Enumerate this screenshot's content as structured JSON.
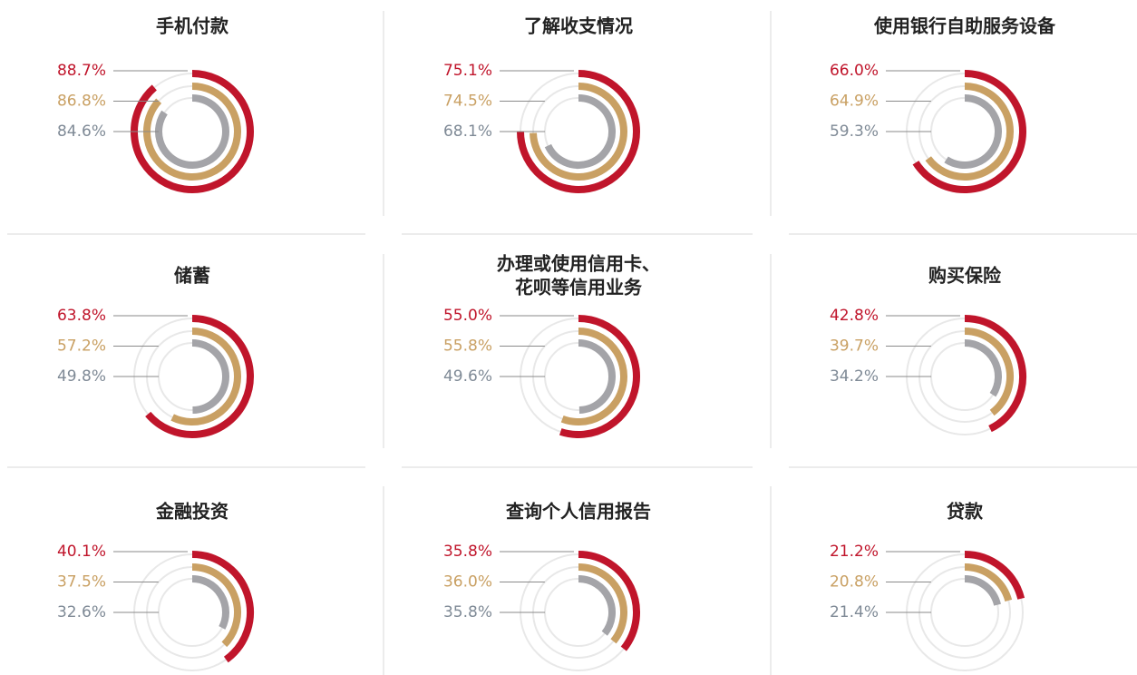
{
  "chart_data": [
    {
      "type": "radial_bar",
      "title": "手机付款",
      "ylim": [
        0,
        100
      ],
      "series": [
        {
          "color": "#c0152b",
          "values": [
            88.7
          ],
          "value_labels": [
            "88.7%"
          ]
        },
        {
          "color": "#c9a063",
          "values": [
            86.8
          ],
          "value_labels": [
            "86.8%"
          ]
        },
        {
          "color": "#a4a4a8",
          "values": [
            84.6
          ],
          "value_labels": [
            "84.6%"
          ]
        }
      ]
    },
    {
      "type": "radial_bar",
      "title": "了解收支情况",
      "ylim": [
        0,
        100
      ],
      "series": [
        {
          "color": "#c0152b",
          "values": [
            75.1
          ],
          "value_labels": [
            "75.1%"
          ]
        },
        {
          "color": "#c9a063",
          "values": [
            74.5
          ],
          "value_labels": [
            "74.5%"
          ]
        },
        {
          "color": "#a4a4a8",
          "values": [
            68.1
          ],
          "value_labels": [
            "68.1%"
          ]
        }
      ]
    },
    {
      "type": "radial_bar",
      "title": "使用银行自助服务设备",
      "ylim": [
        0,
        100
      ],
      "series": [
        {
          "color": "#c0152b",
          "values": [
            66.0
          ],
          "value_labels": [
            "66.0%"
          ]
        },
        {
          "color": "#c9a063",
          "values": [
            64.9
          ],
          "value_labels": [
            "64.9%"
          ]
        },
        {
          "color": "#a4a4a8",
          "values": [
            59.3
          ],
          "value_labels": [
            "59.3%"
          ]
        }
      ]
    },
    {
      "type": "radial_bar",
      "title": "储蓄",
      "ylim": [
        0,
        100
      ],
      "series": [
        {
          "color": "#c0152b",
          "values": [
            63.8
          ],
          "value_labels": [
            "63.8%"
          ]
        },
        {
          "color": "#c9a063",
          "values": [
            57.2
          ],
          "value_labels": [
            "57.2%"
          ]
        },
        {
          "color": "#a4a4a8",
          "values": [
            49.8
          ],
          "value_labels": [
            "49.8%"
          ]
        }
      ]
    },
    {
      "type": "radial_bar",
      "title": [
        "办理或使用信用卡、",
        "花呗等信用业务"
      ],
      "ylim": [
        0,
        100
      ],
      "series": [
        {
          "color": "#c0152b",
          "values": [
            55.0
          ],
          "value_labels": [
            "55.0%"
          ]
        },
        {
          "color": "#c9a063",
          "values": [
            55.8
          ],
          "value_labels": [
            "55.8%"
          ]
        },
        {
          "color": "#a4a4a8",
          "values": [
            49.6
          ],
          "value_labels": [
            "49.6%"
          ]
        }
      ]
    },
    {
      "type": "radial_bar",
      "title": "购买保险",
      "ylim": [
        0,
        100
      ],
      "series": [
        {
          "color": "#c0152b",
          "values": [
            42.8
          ],
          "value_labels": [
            "42.8%"
          ]
        },
        {
          "color": "#c9a063",
          "values": [
            39.7
          ],
          "value_labels": [
            "39.7%"
          ]
        },
        {
          "color": "#a4a4a8",
          "values": [
            34.2
          ],
          "value_labels": [
            "34.2%"
          ]
        }
      ]
    },
    {
      "type": "radial_bar",
      "title": "金融投资",
      "ylim": [
        0,
        100
      ],
      "series": [
        {
          "color": "#c0152b",
          "values": [
            40.1
          ],
          "value_labels": [
            "40.1%"
          ]
        },
        {
          "color": "#c9a063",
          "values": [
            37.5
          ],
          "value_labels": [
            "37.5%"
          ]
        },
        {
          "color": "#a4a4a8",
          "values": [
            32.6
          ],
          "value_labels": [
            "32.6%"
          ]
        }
      ]
    },
    {
      "type": "radial_bar",
      "title": "查询个人信用报告",
      "ylim": [
        0,
        100
      ],
      "series": [
        {
          "color": "#c0152b",
          "values": [
            35.8
          ],
          "value_labels": [
            "35.8%"
          ]
        },
        {
          "color": "#c9a063",
          "values": [
            36.0
          ],
          "value_labels": [
            "36.0%"
          ]
        },
        {
          "color": "#a4a4a8",
          "values": [
            35.8
          ],
          "value_labels": [
            "35.8%"
          ]
        }
      ]
    },
    {
      "type": "radial_bar",
      "title": "贷款",
      "ylim": [
        0,
        100
      ],
      "series": [
        {
          "color": "#c0152b",
          "values": [
            21.2
          ],
          "value_labels": [
            "21.2%"
          ]
        },
        {
          "color": "#c9a063",
          "values": [
            20.8
          ],
          "value_labels": [
            "20.8%"
          ]
        },
        {
          "color": "#a4a4a8",
          "values": [
            21.4
          ],
          "value_labels": [
            "21.4%"
          ]
        }
      ]
    }
  ]
}
